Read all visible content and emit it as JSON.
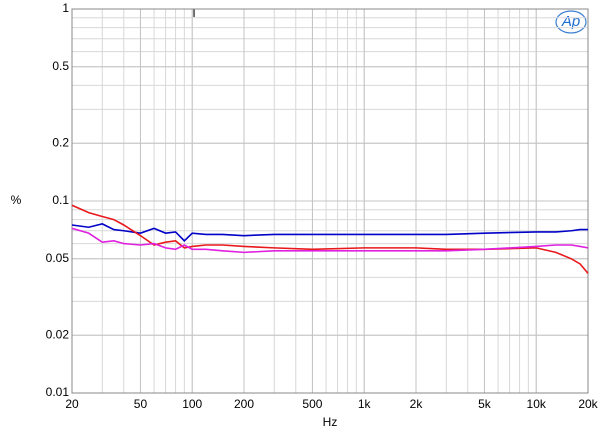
{
  "chart_data": {
    "type": "line",
    "x_label": "Hz",
    "y_label": "%",
    "marker": "T",
    "logo": "Ap",
    "x_scale": "log",
    "y_scale": "log",
    "grid": true,
    "x": [
      20,
      25,
      30,
      35,
      40,
      50,
      60,
      70,
      80,
      90,
      100,
      120,
      150,
      200,
      300,
      500,
      1000,
      2000,
      3000,
      5000,
      10000,
      13000,
      16000,
      18000,
      20000
    ],
    "series": [
      {
        "color": "#0000c8",
        "values": [
          0.075,
          0.073,
          0.076,
          0.071,
          0.07,
          0.068,
          0.072,
          0.068,
          0.069,
          0.062,
          0.068,
          0.067,
          0.067,
          0.066,
          0.067,
          0.067,
          0.067,
          0.067,
          0.067,
          0.068,
          0.069,
          0.069,
          0.07,
          0.071,
          0.071
        ]
      },
      {
        "color": "#e8181c",
        "values": [
          0.095,
          0.087,
          0.083,
          0.08,
          0.075,
          0.066,
          0.059,
          0.061,
          0.062,
          0.057,
          0.058,
          0.059,
          0.059,
          0.058,
          0.057,
          0.056,
          0.057,
          0.057,
          0.056,
          0.056,
          0.057,
          0.054,
          0.05,
          0.047,
          0.042
        ]
      },
      {
        "color": "#e020e0",
        "values": [
          0.072,
          0.068,
          0.061,
          0.062,
          0.06,
          0.059,
          0.06,
          0.057,
          0.056,
          0.059,
          0.056,
          0.056,
          0.055,
          0.054,
          0.055,
          0.055,
          0.055,
          0.055,
          0.055,
          0.056,
          0.058,
          0.059,
          0.059,
          0.058,
          0.057
        ]
      }
    ],
    "xlim": [
      20,
      20000
    ],
    "xticks": [
      20,
      50,
      100,
      200,
      500,
      {
        "value": 1000,
        "label": "1k"
      },
      {
        "value": 2000,
        "label": "2k"
      },
      {
        "value": 5000,
        "label": "5k"
      },
      {
        "value": 10000,
        "label": "10k"
      },
      {
        "value": 20000,
        "label": "20k"
      }
    ],
    "ylim": [
      0.01,
      1
    ],
    "yticks": [
      1,
      0.5,
      0.2,
      0.1,
      0.05,
      0.02,
      0.01
    ]
  }
}
